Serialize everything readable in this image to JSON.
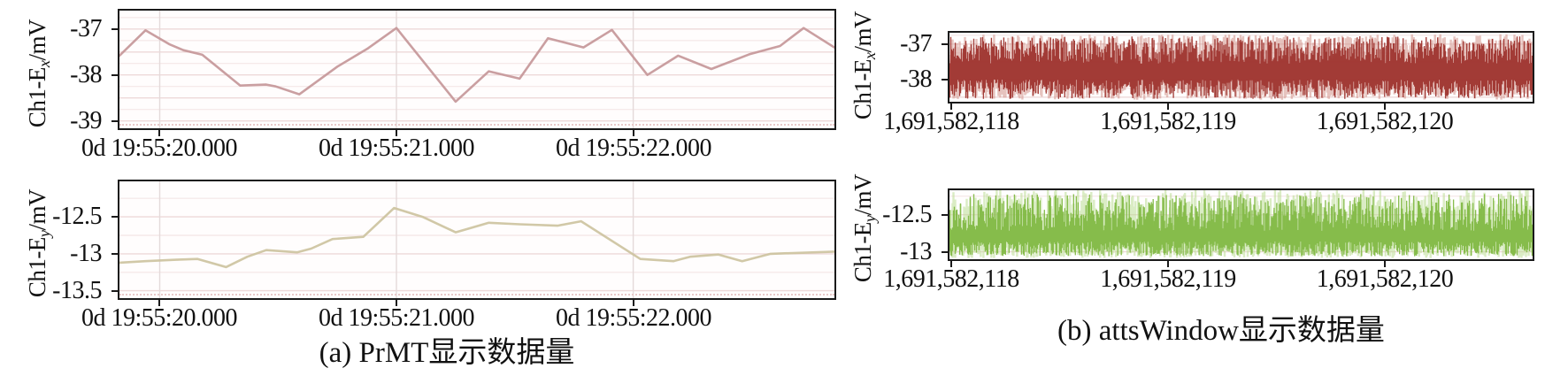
{
  "captions": {
    "a": "(a) PrMT显示数据量",
    "b": "(b) attsWindow显示数据量"
  },
  "chart_data": [
    {
      "id": "prmt-ex",
      "panel": "a",
      "type": "line",
      "ylabel": {
        "main": "Ch1-E",
        "sub": "x",
        "unit": "/mV"
      },
      "color": "#c49597",
      "x_unit": "time, 0d hh:mm:ss (seconds after 0d 19:55:00)",
      "xlim": [
        19.83,
        22.85
      ],
      "ylim": [
        -39.16,
        -36.6
      ],
      "xticks": {
        "values": [
          20,
          21,
          22
        ],
        "labels": [
          "0d 19:55:20.000",
          "0d 19:55:21.000",
          "0d 19:55:22.000"
        ]
      },
      "yticks": {
        "values": [
          -37,
          -38,
          -39
        ],
        "labels": [
          "-37",
          "-38",
          "-39"
        ]
      },
      "grid": {
        "h_step": 0.25,
        "v_at_xticks": true
      },
      "points": [
        [
          19.83,
          -37.58
        ],
        [
          19.94,
          -37.03
        ],
        [
          20.04,
          -37.33
        ],
        [
          20.1,
          -37.46
        ],
        [
          20.18,
          -37.56
        ],
        [
          20.34,
          -38.23
        ],
        [
          20.45,
          -38.21
        ],
        [
          20.49,
          -38.25
        ],
        [
          20.59,
          -38.42
        ],
        [
          20.75,
          -37.82
        ],
        [
          20.88,
          -37.42
        ],
        [
          21.0,
          -36.98
        ],
        [
          21.25,
          -38.58
        ],
        [
          21.39,
          -37.92
        ],
        [
          21.52,
          -38.08
        ],
        [
          21.64,
          -37.2
        ],
        [
          21.79,
          -37.4
        ],
        [
          21.91,
          -37.02
        ],
        [
          22.06,
          -38.0
        ],
        [
          22.19,
          -37.58
        ],
        [
          22.33,
          -37.87
        ],
        [
          22.49,
          -37.55
        ],
        [
          22.62,
          -37.37
        ],
        [
          22.72,
          -36.98
        ],
        [
          22.85,
          -37.4
        ]
      ]
    },
    {
      "id": "prmt-ey",
      "panel": "a",
      "type": "line",
      "ylabel": {
        "main": "Ch1-E",
        "sub": "y",
        "unit": "/mV"
      },
      "color": "#ccc29d",
      "x_unit": "time, 0d hh:mm:ss (seconds after 0d 19:55:00)",
      "xlim": [
        19.83,
        22.85
      ],
      "ylim": [
        -13.6,
        -12.02
      ],
      "xticks": {
        "values": [
          20,
          21,
          22
        ],
        "labels": [
          "0d 19:55:20.000",
          "0d 19:55:21.000",
          "0d 19:55:22.000"
        ]
      },
      "yticks": {
        "values": [
          -12.5,
          -13,
          -13.5
        ],
        "labels": [
          "-12.5",
          "-13",
          "-13.5"
        ]
      },
      "grid": {
        "h_step": 0.25,
        "v_at_xticks": true
      },
      "points": [
        [
          19.83,
          -13.12
        ],
        [
          19.94,
          -13.1
        ],
        [
          20.07,
          -13.08
        ],
        [
          20.16,
          -13.07
        ],
        [
          20.28,
          -13.18
        ],
        [
          20.37,
          -13.04
        ],
        [
          20.45,
          -12.95
        ],
        [
          20.58,
          -12.98
        ],
        [
          20.64,
          -12.93
        ],
        [
          20.73,
          -12.8
        ],
        [
          20.86,
          -12.77
        ],
        [
          20.99,
          -12.38
        ],
        [
          21.11,
          -12.5
        ],
        [
          21.25,
          -12.71
        ],
        [
          21.39,
          -12.58
        ],
        [
          21.52,
          -12.6
        ],
        [
          21.68,
          -12.62
        ],
        [
          21.78,
          -12.56
        ],
        [
          22.03,
          -13.07
        ],
        [
          22.17,
          -13.1
        ],
        [
          22.24,
          -13.04
        ],
        [
          22.36,
          -13.01
        ],
        [
          22.46,
          -13.1
        ],
        [
          22.58,
          -13.0
        ],
        [
          22.85,
          -12.97
        ]
      ]
    },
    {
      "id": "atts-ex",
      "panel": "b",
      "type": "noise",
      "ylabel": {
        "main": "Ch1-E",
        "sub": "x",
        "unit": "/mV"
      },
      "color": "#9e342e",
      "color_light": "#d29288",
      "x_unit": "unix time, s",
      "xlim": [
        1691582117.99,
        1691582120.68
      ],
      "ylim": [
        -38.63,
        -36.68
      ],
      "xticks": {
        "values": [
          1691582118,
          1691582119,
          1691582120
        ],
        "labels": [
          "1,691,582,118",
          "1,691,582,119",
          "1,691,582,120"
        ]
      },
      "yticks": {
        "values": [
          -37,
          -38
        ],
        "labels": [
          "-37",
          "-38"
        ]
      },
      "grid": {
        "h_step": 0.25,
        "v_at_xticks": false
      },
      "noise": {
        "seed": 7,
        "columns": 660,
        "top_range": [
          -37.55,
          -36.78
        ],
        "bottom_range": [
          -38.55,
          -38.0
        ]
      }
    },
    {
      "id": "atts-ey",
      "panel": "b",
      "type": "noise",
      "ylabel": {
        "main": "Ch1-E",
        "sub": "y",
        "unit": "/mV"
      },
      "color": "#82b944",
      "color_light": "#bcdc94",
      "x_unit": "unix time, s",
      "xlim": [
        1691582117.99,
        1691582120.68
      ],
      "ylim": [
        -13.1,
        -12.17
      ],
      "xticks": {
        "values": [
          1691582118,
          1691582119,
          1691582120
        ],
        "labels": [
          "1,691,582,118",
          "1,691,582,119",
          "1,691,582,120"
        ]
      },
      "yticks": {
        "values": [
          -12.5,
          -13
        ],
        "labels": [
          "-12.5",
          "-13"
        ]
      },
      "grid": {
        "h_step": 0.25,
        "v_at_xticks": false
      },
      "noise": {
        "seed": 13,
        "columns": 660,
        "top_range": [
          -12.72,
          -12.22
        ],
        "bottom_range": [
          -13.06,
          -12.86
        ]
      }
    }
  ]
}
